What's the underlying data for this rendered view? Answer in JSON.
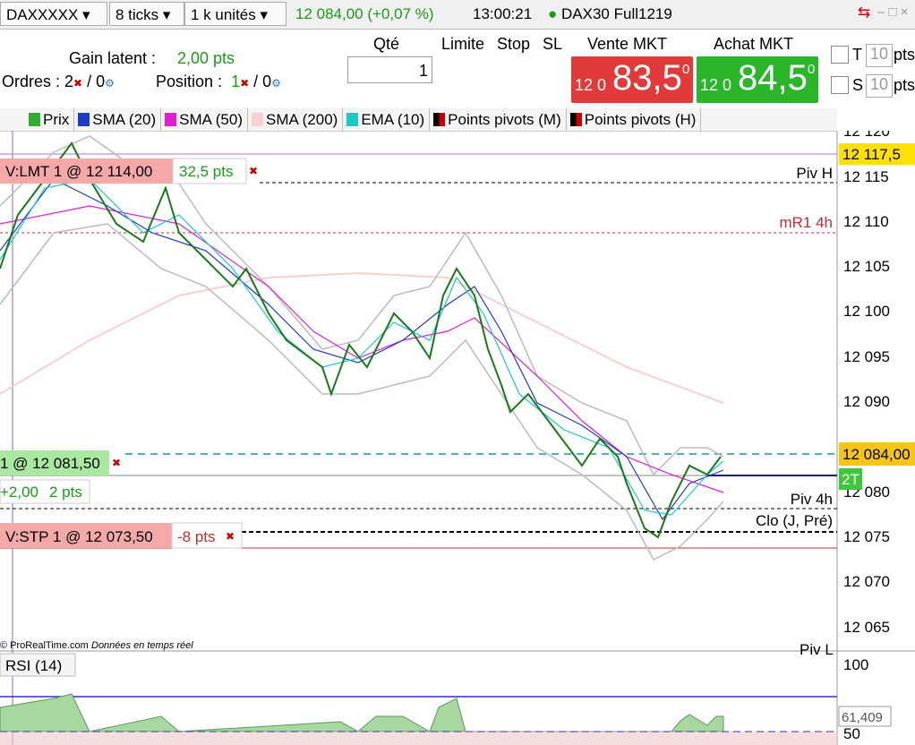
{
  "toolbar": {
    "instrument": "DAXXXXX",
    "ticks": "8 ticks",
    "units": "1 k unités",
    "price": "12 084,00 (+0,07 %)",
    "time": "13:00:21",
    "contract": "DAX30 Full1219"
  },
  "order_panel": {
    "gain_label": "Gain latent :",
    "gain_value": "2,00 pts",
    "orders_label": "Ordres : 2",
    "orders_zero": "/ 0",
    "position_label": "Position :",
    "position_value": "1",
    "position_zero": "/ 0",
    "qty_label": "Qté",
    "qty_value": "1",
    "limit": "Limite",
    "stop": "Stop",
    "sl": "SL",
    "sell_label": "Vente MKT",
    "sell_prefix": "12 0",
    "sell_main": "83,5",
    "sell_sup": "0",
    "buy_label": "Achat MKT",
    "buy_prefix": "12 0",
    "buy_main": "84,5",
    "buy_sup": "0",
    "t_label": "T",
    "t_value": "10",
    "t_unit": "pts",
    "s_label": "S",
    "s_value": "10",
    "s_unit": "pts"
  },
  "legend": [
    "Prix",
    "SMA (20)",
    "SMA (50)",
    "SMA (200)",
    "EMA (10)",
    "Points pivots (M)",
    "Points pivots (H)"
  ],
  "price_axis": {
    "ticks": [
      "12 120",
      "12 115",
      "12 110",
      "12 105",
      "12 100",
      "12 095",
      "12 090",
      "12 080",
      "12 075",
      "12 070",
      "12 065"
    ],
    "marker": "12 117,5",
    "current_price": "12 084,00",
    "position_badge": "2T"
  },
  "orders": [
    {
      "label": "V:LMT 1 @ 12 114,00",
      "pts": "32,5 pts"
    },
    {
      "label": "1 @ 12 081,50",
      "gain": "+2,00",
      "pts": "2 pts"
    },
    {
      "label": "V:STP 1 @ 12 073,50",
      "pts": "-8 pts"
    }
  ],
  "levels": [
    "Piv H",
    "mR1 4h",
    "Piv 4h",
    "Clo (J, Pré)",
    "Piv L"
  ],
  "watermark": {
    "source": "© ProRealTime.com",
    "note": "Données en temps réel"
  },
  "rsi": {
    "title": "RSI (14)",
    "ticks": [
      "100",
      "50"
    ],
    "value": "61,409"
  }
}
